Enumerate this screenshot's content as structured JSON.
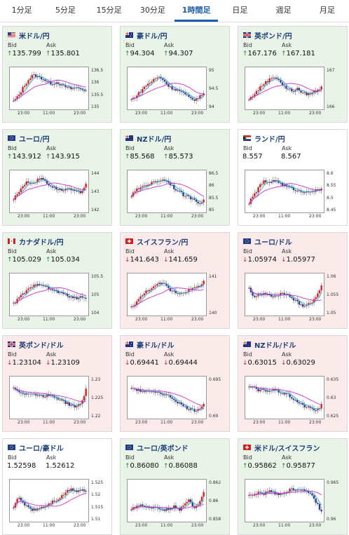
{
  "tabs": [
    "1分足",
    "5分足",
    "15分足",
    "30分足",
    "1時間足",
    "日足",
    "週足",
    "月足"
  ],
  "active_tab": 4,
  "labels": {
    "bid": "Bid",
    "ask": "Ask"
  },
  "colors": {
    "up": "#1b8f2c",
    "down": "#d42020",
    "ma_short": "#3aa6d6",
    "ma_long": "#cc33cc",
    "candle_up": "#d42020",
    "candle_down": "#1c3f9a"
  },
  "cards": [
    {
      "title": "米ドル/円",
      "flag": "us-flag",
      "dir": "up",
      "bid": "135.799",
      "ask": "135.801",
      "yticks": [
        "136.5",
        "136",
        "135.5",
        "135"
      ],
      "xticks": [
        "23:00",
        "11:00",
        "23:00"
      ],
      "chart_data": {
        "type": "candlestick",
        "trend": [
          0.15,
          0.3,
          0.55,
          0.75,
          0.9,
          0.85,
          0.8,
          0.7,
          0.65,
          0.7,
          0.6,
          0.55,
          0.5,
          0.55,
          0.5,
          0.45
        ]
      }
    },
    {
      "title": "豪ドル/円",
      "flag": "au-flag",
      "dir": "up",
      "bid": "94.304",
      "ask": "94.307",
      "yticks": [
        "95",
        "94.5",
        "94"
      ],
      "xticks": [
        "23:00",
        "11:00",
        "23:00"
      ],
      "chart_data": {
        "type": "candlestick",
        "trend": [
          0.2,
          0.3,
          0.45,
          0.6,
          0.7,
          0.8,
          0.85,
          0.7,
          0.55,
          0.5,
          0.45,
          0.35,
          0.25,
          0.2,
          0.25,
          0.4
        ]
      }
    },
    {
      "title": "英ポンド/円",
      "flag": "gb-flag",
      "dir": "up",
      "bid": "167.176",
      "ask": "167.181",
      "yticks": [
        "167",
        "166"
      ],
      "xticks": [
        "23:00",
        "11:00",
        "23:00"
      ],
      "chart_data": {
        "type": "candlestick",
        "trend": [
          0.2,
          0.35,
          0.5,
          0.65,
          0.75,
          0.85,
          0.8,
          0.6,
          0.5,
          0.45,
          0.5,
          0.4,
          0.35,
          0.4,
          0.45,
          0.55
        ]
      }
    },
    {
      "title": "ユーロ/円",
      "flag": "eu-flag",
      "dir": "up",
      "bid": "143.912",
      "ask": "143.915",
      "yticks": [
        "144",
        "143",
        "142"
      ],
      "xticks": [
        "23:00",
        "11:00",
        "23:00"
      ],
      "chart_data": {
        "type": "candlestick",
        "trend": [
          0.3,
          0.5,
          0.7,
          0.8,
          0.75,
          0.85,
          0.9,
          0.75,
          0.65,
          0.6,
          0.55,
          0.6,
          0.55,
          0.5,
          0.5,
          0.75
        ]
      }
    },
    {
      "title": "NZドル/円",
      "flag": "nz-flag",
      "dir": "up",
      "bid": "85.568",
      "ask": "85.573",
      "yticks": [
        "86.5",
        "86",
        "85.5",
        "85"
      ],
      "xticks": [
        "23:00",
        "11:00",
        "23:00"
      ],
      "chart_data": {
        "type": "candlestick",
        "trend": [
          0.4,
          0.55,
          0.65,
          0.7,
          0.75,
          0.8,
          0.85,
          0.85,
          0.75,
          0.6,
          0.5,
          0.4,
          0.35,
          0.3,
          0.2,
          0.25
        ]
      }
    },
    {
      "title": "ランド/円",
      "flag": "za-flag",
      "dir": "neutral",
      "bid": "8.557",
      "ask": "8.567",
      "yticks": [
        "8.6",
        "8.55",
        "8.5",
        "8.45"
      ],
      "xticks": [
        "23:00",
        "11:00",
        "23:00"
      ],
      "chart_data": {
        "type": "candlestick",
        "trend": [
          0.2,
          0.4,
          0.65,
          0.8,
          0.75,
          0.85,
          0.8,
          0.7,
          0.65,
          0.6,
          0.55,
          0.5,
          0.55,
          0.5,
          0.55,
          0.6
        ]
      }
    },
    {
      "title": "カナダドル/円",
      "flag": "ca-flag",
      "dir": "up",
      "bid": "105.029",
      "ask": "105.034",
      "yticks": [
        "105.5",
        "105",
        "104"
      ],
      "xticks": [
        "23:00",
        "11:00",
        "23:00"
      ],
      "chart_data": {
        "type": "candlestick",
        "trend": [
          0.25,
          0.4,
          0.55,
          0.65,
          0.75,
          0.85,
          0.8,
          0.7,
          0.65,
          0.6,
          0.55,
          0.5,
          0.45,
          0.4,
          0.45,
          0.45
        ]
      }
    },
    {
      "title": "スイスフラン/円",
      "flag": "ch-flag",
      "dir": "down",
      "bid": "141.643",
      "ask": "141.659",
      "yticks": [
        "141",
        "140"
      ],
      "xticks": [
        "23:00",
        "11:00",
        "23:00"
      ],
      "chart_data": {
        "type": "candlestick",
        "trend": [
          0.15,
          0.3,
          0.45,
          0.6,
          0.7,
          0.75,
          0.85,
          0.8,
          0.65,
          0.6,
          0.55,
          0.6,
          0.65,
          0.7,
          0.75,
          0.9
        ]
      }
    },
    {
      "title": "ユーロ/ドル",
      "flag": "eu-flag",
      "dir": "down",
      "bid": "1.05974",
      "ask": "1.05977",
      "yticks": [
        "1.06",
        "1.055",
        "1.05"
      ],
      "xticks": [
        "23:00",
        "11:00",
        "23:00"
      ],
      "chart_data": {
        "type": "candlestick",
        "trend": [
          0.7,
          0.45,
          0.5,
          0.55,
          0.5,
          0.45,
          0.5,
          0.55,
          0.5,
          0.4,
          0.3,
          0.2,
          0.25,
          0.3,
          0.45,
          0.8
        ]
      }
    },
    {
      "title": "英ポンド/ドル",
      "flag": "gb-flag",
      "dir": "down",
      "bid": "1.23104",
      "ask": "1.23109",
      "yticks": [
        "1.23",
        "1.225",
        "1.22"
      ],
      "xticks": [
        "23:00",
        "11:00",
        "23:00"
      ],
      "chart_data": {
        "type": "candlestick",
        "trend": [
          0.8,
          0.7,
          0.65,
          0.6,
          0.65,
          0.6,
          0.55,
          0.6,
          0.55,
          0.5,
          0.45,
          0.35,
          0.3,
          0.25,
          0.35,
          0.75
        ]
      }
    },
    {
      "title": "豪ドル/ドル",
      "flag": "au-flag",
      "dir": "down",
      "bid": "0.69441",
      "ask": "0.69444",
      "yticks": [
        "0.695",
        "0.69"
      ],
      "xticks": [
        "23:00",
        "11:00",
        "23:00"
      ],
      "chart_data": {
        "type": "candlestick",
        "trend": [
          0.8,
          0.75,
          0.7,
          0.7,
          0.65,
          0.7,
          0.65,
          0.6,
          0.55,
          0.45,
          0.35,
          0.25,
          0.2,
          0.15,
          0.2,
          0.35
        ]
      }
    },
    {
      "title": "NZドル/ドル",
      "flag": "nz-flag",
      "dir": "down",
      "bid": "0.63015",
      "ask": "0.63029",
      "yticks": [
        "0.635",
        "0.63",
        "0.625"
      ],
      "xticks": [
        "23:00",
        "11:00",
        "23:00"
      ],
      "chart_data": {
        "type": "candlestick",
        "trend": [
          0.85,
          0.8,
          0.7,
          0.75,
          0.7,
          0.75,
          0.7,
          0.65,
          0.6,
          0.5,
          0.4,
          0.3,
          0.25,
          0.2,
          0.15,
          0.3
        ]
      }
    },
    {
      "title": "ユーロ/豪ドル",
      "flag": "eu-flag",
      "dir": "neutral",
      "bid": "1.52598",
      "ask": "1.52612",
      "yticks": [
        "1.525",
        "1.52",
        "1.515",
        "1.51"
      ],
      "xticks": [
        "23:00",
        "11:00",
        "23:00"
      ],
      "chart_data": {
        "type": "candlestick",
        "trend": [
          0.35,
          0.6,
          0.45,
          0.35,
          0.25,
          0.3,
          0.35,
          0.4,
          0.5,
          0.55,
          0.65,
          0.8,
          0.85,
          0.8,
          0.85,
          0.8
        ]
      }
    },
    {
      "title": "ユーロ/英ポンド",
      "flag": "eu-flag",
      "dir": "up",
      "bid": "0.86080",
      "ask": "0.86088",
      "yticks": [
        "0.862",
        "0.86",
        "0.858"
      ],
      "xticks": [
        "23:00",
        "11:00",
        "23:00"
      ],
      "chart_data": {
        "type": "candlestick",
        "trend": [
          0.3,
          0.35,
          0.4,
          0.35,
          0.3,
          0.35,
          0.3,
          0.25,
          0.3,
          0.35,
          0.25,
          0.4,
          0.6,
          0.3,
          0.45,
          0.8
        ]
      }
    },
    {
      "title": "米ドル/スイスフラン",
      "flag": "ch-flag",
      "dir": "up",
      "bid": "0.95862",
      "ask": "0.95877",
      "yticks": [
        "0.965",
        "0.96"
      ],
      "xticks": [
        "23:00",
        "11:00",
        "23:00"
      ],
      "chart_data": {
        "type": "candlestick",
        "trend": [
          0.65,
          0.7,
          0.75,
          0.7,
          0.8,
          0.75,
          0.7,
          0.75,
          0.8,
          0.85,
          0.8,
          0.85,
          0.8,
          0.65,
          0.45,
          0.2
        ]
      }
    }
  ]
}
